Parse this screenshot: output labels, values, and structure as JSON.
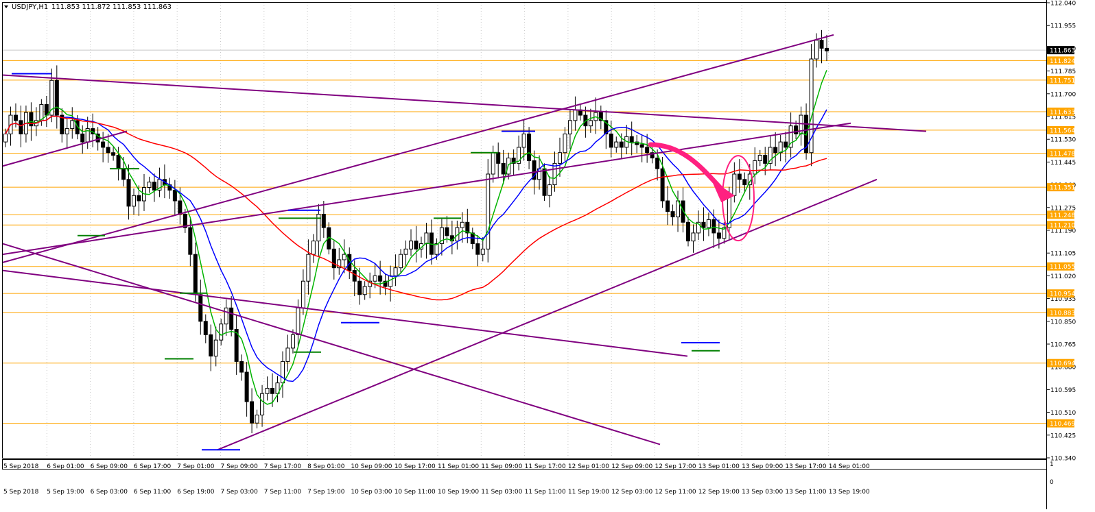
{
  "window": {
    "symbol_title": "USDJPY,H1",
    "ohlc_readout": "111.853 111.872 111.853 111.863",
    "menu_icon": "triangle-down-icon"
  },
  "colors": {
    "background": "#ffffff",
    "grid": "#c8c8c8",
    "bull_candle": "#ffffff",
    "bear_candle": "#000000",
    "wick": "#000000",
    "ma_fast": "#00b400",
    "ma_mid": "#0000ff",
    "ma_slow": "#ff0000",
    "trendline": "#800080",
    "level": "#ffa500",
    "price_tag_bg": "#ffa500",
    "current_price_bg": "#000000",
    "annotation": "#ff2080"
  },
  "price_axis": {
    "labels": [
      "112.040",
      "111.955",
      "111.870",
      "111.785",
      "111.700",
      "111.615",
      "111.530",
      "111.445",
      "111.360",
      "111.275",
      "111.190",
      "111.105",
      "111.020",
      "110.935",
      "110.850",
      "110.765",
      "110.680",
      "110.595",
      "110.510",
      "110.425",
      "110.340"
    ],
    "current_price": "111.863"
  },
  "levels": [
    "111.824",
    "111.751",
    "111.633",
    "111.564",
    "111.478",
    "111.351",
    "111.248",
    "111.210",
    "111.055",
    "110.954",
    "110.883",
    "110.694",
    "110.469"
  ],
  "time_axis_upper": [
    "5 Sep 2018",
    "6 Sep 01:00",
    "6 Sep 09:00",
    "6 Sep 17:00",
    "7 Sep 01:00",
    "7 Sep 09:00",
    "7 Sep 17:00",
    "8 Sep 01:00",
    "10 Sep 09:00",
    "10 Sep 17:00",
    "11 Sep 01:00",
    "11 Sep 09:00",
    "11 Sep 17:00",
    "12 Sep 01:00",
    "12 Sep 09:00",
    "12 Sep 17:00",
    "13 Sep 01:00",
    "13 Sep 09:00",
    "13 Sep 17:00",
    "14 Sep 01:00"
  ],
  "time_axis_lower": [
    "5 Sep 2018",
    "5 Sep 19:00",
    "6 Sep 03:00",
    "6 Sep 11:00",
    "6 Sep 19:00",
    "7 Sep 03:00",
    "7 Sep 11:00",
    "7 Sep 19:00",
    "10 Sep 03:00",
    "10 Sep 11:00",
    "10 Sep 19:00",
    "11 Sep 03:00",
    "11 Sep 11:00",
    "11 Sep 19:00",
    "12 Sep 03:00",
    "12 Sep 11:00",
    "12 Sep 19:00",
    "13 Sep 03:00",
    "13 Sep 11:00",
    "13 Sep 19:00"
  ],
  "sub_axis": {
    "top": "1",
    "bottom": "0"
  },
  "chart_data": {
    "type": "candlestick",
    "symbol": "USDJPY",
    "timeframe": "H1",
    "ylim": [
      110.34,
      112.04
    ],
    "grid": true,
    "closes": [
      111.55,
      111.62,
      111.6,
      111.55,
      111.63,
      111.58,
      111.6,
      111.66,
      111.62,
      111.75,
      111.62,
      111.55,
      111.57,
      111.6,
      111.55,
      111.52,
      111.57,
      111.55,
      111.52,
      111.5,
      111.48,
      111.47,
      111.42,
      111.38,
      111.28,
      111.32,
      111.3,
      111.35,
      111.37,
      111.34,
      111.38,
      111.36,
      111.34,
      111.3,
      111.25,
      111.2,
      111.1,
      110.95,
      110.85,
      110.8,
      110.72,
      110.78,
      110.84,
      110.9,
      110.82,
      110.7,
      110.66,
      110.55,
      110.47,
      110.5,
      110.58,
      110.6,
      110.58,
      110.62,
      110.7,
      110.75,
      110.8,
      110.9,
      111.0,
      111.1,
      111.15,
      111.25,
      111.2,
      111.12,
      111.05,
      111.08,
      111.1,
      111.04,
      111.0,
      110.95,
      110.98,
      111.0,
      111.02,
      111.0,
      110.98,
      111.02,
      111.05,
      111.1,
      111.12,
      111.15,
      111.12,
      111.14,
      111.18,
      111.1,
      111.14,
      111.2,
      111.17,
      111.15,
      111.2,
      111.22,
      111.18,
      111.14,
      111.1,
      111.12,
      111.4,
      111.48,
      111.44,
      111.4,
      111.46,
      111.44,
      111.5,
      111.55,
      111.45,
      111.38,
      111.42,
      111.32,
      111.36,
      111.44,
      111.48,
      111.55,
      111.6,
      111.64,
      111.62,
      111.58,
      111.6,
      111.63,
      111.6,
      111.55,
      111.5,
      111.52,
      111.5,
      111.54,
      111.52,
      111.51,
      111.5,
      111.48,
      111.46,
      111.42,
      111.3,
      111.26,
      111.24,
      111.3,
      111.22,
      111.15,
      111.18,
      111.22,
      111.2,
      111.23,
      111.18,
      111.16,
      111.2,
      111.32,
      111.4,
      111.38,
      111.36,
      111.4,
      111.45,
      111.47,
      111.44,
      111.5,
      111.48,
      111.52,
      111.5,
      111.58,
      111.55,
      111.62,
      111.48,
      111.83,
      111.9,
      111.87,
      111.86
    ]
  }
}
